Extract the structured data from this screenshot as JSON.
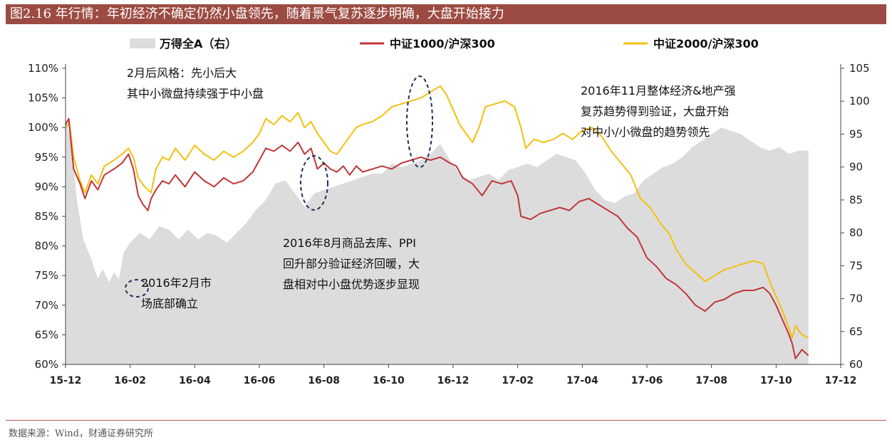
{
  "title": "图2.16 年行情：年初经济不确定仍然小盘领先，随着景气复苏逐步明确，大盘开始接力",
  "source": "数据来源：Wind，财通证券研究所",
  "colors": {
    "title_bg": "#9c4b43",
    "area": "#dcdcdc",
    "csi1000": "#c0353a",
    "csi2000": "#f2c010",
    "circle": "#1f2e5a"
  },
  "chart_data": {
    "type": "line",
    "legend": [
      "万得全A（右）",
      "中证1000/沪深300",
      "中证2000/沪深300"
    ],
    "legend_position": "top",
    "x_ticks": [
      "15-12",
      "16-02",
      "16-04",
      "16-06",
      "16-08",
      "16-10",
      "16-12",
      "17-02",
      "17-04",
      "17-06",
      "17-08",
      "17-10",
      "17-12"
    ],
    "y_left": {
      "ticks": [
        "60%",
        "65%",
        "70%",
        "75%",
        "80%",
        "85%",
        "90%",
        "95%",
        "100%",
        "105%",
        "110%"
      ],
      "ylim": [
        60,
        110
      ],
      "unit": "%"
    },
    "y_right": {
      "ticks": [
        "60",
        "65",
        "70",
        "75",
        "80",
        "85",
        "90",
        "95",
        "100",
        "105"
      ],
      "ylim": [
        60,
        105
      ]
    },
    "grid": false,
    "series": [
      {
        "name": "万得全A（右）",
        "type": "area",
        "axis": "right",
        "points": [
          [
            0,
            97.5
          ],
          [
            0.2,
            93
          ],
          [
            0.35,
            85
          ],
          [
            0.55,
            79
          ],
          [
            0.8,
            76
          ],
          [
            1.0,
            73
          ],
          [
            1.15,
            74.5
          ],
          [
            1.35,
            72.5
          ],
          [
            1.5,
            74
          ],
          [
            1.65,
            73
          ],
          [
            1.8,
            77
          ],
          [
            2.0,
            78.5
          ],
          [
            2.3,
            80
          ],
          [
            2.6,
            79
          ],
          [
            2.9,
            81
          ],
          [
            3.2,
            80.5
          ],
          [
            3.5,
            79
          ],
          [
            3.8,
            80.5
          ],
          [
            4.1,
            79
          ],
          [
            4.4,
            80
          ],
          [
            4.7,
            79.5
          ],
          [
            5.0,
            78.5
          ],
          [
            5.3,
            80
          ],
          [
            5.6,
            81.5
          ],
          [
            5.9,
            83.5
          ],
          [
            6.2,
            85
          ],
          [
            6.5,
            87.5
          ],
          [
            6.8,
            88
          ],
          [
            7.1,
            86
          ],
          [
            7.4,
            84
          ],
          [
            7.7,
            86
          ],
          [
            8.0,
            86.5
          ],
          [
            8.3,
            87
          ],
          [
            8.6,
            87.5
          ],
          [
            8.9,
            88
          ],
          [
            9.2,
            88.5
          ],
          [
            9.5,
            89
          ],
          [
            9.8,
            89
          ],
          [
            10.1,
            90.5
          ],
          [
            10.4,
            90
          ],
          [
            10.7,
            90.5
          ],
          [
            11.0,
            91
          ],
          [
            11.3,
            92
          ],
          [
            11.6,
            93.5
          ],
          [
            11.9,
            91
          ],
          [
            12.2,
            89
          ],
          [
            12.5,
            88
          ],
          [
            12.8,
            88.5
          ],
          [
            13.1,
            89
          ],
          [
            13.4,
            88
          ],
          [
            13.7,
            89.5
          ],
          [
            14.0,
            90
          ],
          [
            14.3,
            90.5
          ],
          [
            14.6,
            90
          ],
          [
            14.9,
            91
          ],
          [
            15.2,
            92
          ],
          [
            15.5,
            91.5
          ],
          [
            15.8,
            91
          ],
          [
            16.1,
            89
          ],
          [
            16.4,
            86.5
          ],
          [
            16.7,
            85
          ],
          [
            17.0,
            84.5
          ],
          [
            17.3,
            85.5
          ],
          [
            17.6,
            86
          ],
          [
            17.9,
            88
          ],
          [
            18.2,
            89
          ],
          [
            18.5,
            90
          ],
          [
            18.8,
            90.5
          ],
          [
            19.1,
            91.5
          ],
          [
            19.4,
            93
          ],
          [
            19.7,
            94
          ],
          [
            20.0,
            95
          ],
          [
            20.3,
            96
          ],
          [
            20.6,
            95.5
          ],
          [
            20.9,
            95
          ],
          [
            21.2,
            94
          ],
          [
            21.5,
            93
          ],
          [
            21.8,
            92.5
          ],
          [
            22.1,
            93
          ],
          [
            22.4,
            92
          ],
          [
            22.7,
            92.5
          ],
          [
            23.0,
            92.5
          ]
        ]
      },
      {
        "name": "中证1000/沪深300",
        "axis": "left",
        "points": [
          [
            0,
            100.5
          ],
          [
            0.1,
            101.5
          ],
          [
            0.25,
            93
          ],
          [
            0.45,
            90.5
          ],
          [
            0.6,
            88
          ],
          [
            0.8,
            91
          ],
          [
            1.0,
            89.5
          ],
          [
            1.2,
            92
          ],
          [
            1.5,
            93
          ],
          [
            1.75,
            94
          ],
          [
            1.95,
            95.5
          ],
          [
            2.1,
            93
          ],
          [
            2.25,
            88.5
          ],
          [
            2.4,
            87
          ],
          [
            2.55,
            86
          ],
          [
            2.65,
            88
          ],
          [
            2.8,
            89.5
          ],
          [
            3.0,
            91
          ],
          [
            3.2,
            90.5
          ],
          [
            3.4,
            92
          ],
          [
            3.7,
            90
          ],
          [
            4.0,
            92.5
          ],
          [
            4.3,
            91
          ],
          [
            4.6,
            90
          ],
          [
            4.9,
            91.5
          ],
          [
            5.2,
            90.5
          ],
          [
            5.5,
            91
          ],
          [
            5.8,
            92.5
          ],
          [
            6.0,
            94.5
          ],
          [
            6.2,
            96.5
          ],
          [
            6.45,
            96
          ],
          [
            6.7,
            97
          ],
          [
            6.95,
            96
          ],
          [
            7.2,
            97.5
          ],
          [
            7.4,
            95.5
          ],
          [
            7.6,
            96.5
          ],
          [
            7.8,
            93
          ],
          [
            8.0,
            94
          ],
          [
            8.2,
            93
          ],
          [
            8.4,
            92.5
          ],
          [
            8.6,
            93.5
          ],
          [
            8.8,
            92
          ],
          [
            9.0,
            93.5
          ],
          [
            9.2,
            92.5
          ],
          [
            9.5,
            93
          ],
          [
            9.8,
            93.5
          ],
          [
            10.1,
            93
          ],
          [
            10.4,
            94
          ],
          [
            10.7,
            94.5
          ],
          [
            11.0,
            95
          ],
          [
            11.3,
            94.5
          ],
          [
            11.6,
            95
          ],
          [
            11.9,
            94
          ],
          [
            12.1,
            93.5
          ],
          [
            12.3,
            91.5
          ],
          [
            12.6,
            90.5
          ],
          [
            12.9,
            88.5
          ],
          [
            13.2,
            91
          ],
          [
            13.5,
            90.5
          ],
          [
            13.8,
            91
          ],
          [
            14.0,
            88.5
          ],
          [
            14.1,
            85
          ],
          [
            14.4,
            84.5
          ],
          [
            14.7,
            85.5
          ],
          [
            15.0,
            86
          ],
          [
            15.3,
            86.5
          ],
          [
            15.6,
            86
          ],
          [
            15.9,
            87.5
          ],
          [
            16.2,
            88
          ],
          [
            16.5,
            87
          ],
          [
            16.8,
            86
          ],
          [
            17.1,
            85
          ],
          [
            17.4,
            83
          ],
          [
            17.7,
            81.5
          ],
          [
            18.0,
            78
          ],
          [
            18.3,
            76.5
          ],
          [
            18.6,
            74.5
          ],
          [
            18.9,
            73.5
          ],
          [
            19.2,
            72
          ],
          [
            19.5,
            70
          ],
          [
            19.8,
            69
          ],
          [
            20.1,
            70.5
          ],
          [
            20.4,
            71
          ],
          [
            20.7,
            72
          ],
          [
            21.0,
            72.5
          ],
          [
            21.3,
            72.5
          ],
          [
            21.6,
            73
          ],
          [
            21.8,
            72
          ],
          [
            22.0,
            70
          ],
          [
            22.2,
            67.5
          ],
          [
            22.4,
            65
          ],
          [
            22.5,
            63.5
          ],
          [
            22.6,
            61
          ],
          [
            22.8,
            62.5
          ],
          [
            23.0,
            61.5
          ]
        ]
      },
      {
        "name": "中证2000/沪深300",
        "axis": "left",
        "points": [
          [
            0,
            100
          ],
          [
            0.12,
            100.8
          ],
          [
            0.25,
            95
          ],
          [
            0.45,
            91
          ],
          [
            0.6,
            89
          ],
          [
            0.8,
            92
          ],
          [
            1.0,
            90.5
          ],
          [
            1.2,
            93.5
          ],
          [
            1.5,
            94.5
          ],
          [
            1.75,
            95.5
          ],
          [
            1.95,
            96.5
          ],
          [
            2.1,
            95
          ],
          [
            2.25,
            91.5
          ],
          [
            2.45,
            90
          ],
          [
            2.65,
            89
          ],
          [
            2.8,
            93
          ],
          [
            3.0,
            95
          ],
          [
            3.2,
            94.5
          ],
          [
            3.4,
            96.5
          ],
          [
            3.7,
            94.5
          ],
          [
            4.0,
            97
          ],
          [
            4.3,
            95.5
          ],
          [
            4.6,
            94.5
          ],
          [
            4.9,
            96
          ],
          [
            5.2,
            95
          ],
          [
            5.5,
            96
          ],
          [
            5.8,
            97.5
          ],
          [
            6.0,
            99
          ],
          [
            6.2,
            101.5
          ],
          [
            6.45,
            100.5
          ],
          [
            6.7,
            102
          ],
          [
            6.95,
            101
          ],
          [
            7.2,
            102.5
          ],
          [
            7.4,
            100
          ],
          [
            7.6,
            101
          ],
          [
            7.8,
            99
          ],
          [
            8.0,
            97.5
          ],
          [
            8.2,
            96
          ],
          [
            8.4,
            95.5
          ],
          [
            8.6,
            97
          ],
          [
            8.8,
            98.5
          ],
          [
            9.0,
            100
          ],
          [
            9.2,
            100.5
          ],
          [
            9.5,
            101
          ],
          [
            9.8,
            102
          ],
          [
            10.1,
            103.5
          ],
          [
            10.4,
            104
          ],
          [
            10.7,
            104.5
          ],
          [
            11.0,
            105
          ],
          [
            11.3,
            106
          ],
          [
            11.6,
            107
          ],
          [
            11.8,
            105.5
          ],
          [
            12.0,
            103
          ],
          [
            12.2,
            100.5
          ],
          [
            12.4,
            99
          ],
          [
            12.6,
            97.5
          ],
          [
            12.8,
            100
          ],
          [
            13.0,
            103.5
          ],
          [
            13.3,
            104
          ],
          [
            13.6,
            104.5
          ],
          [
            13.9,
            103.5
          ],
          [
            14.1,
            100
          ],
          [
            14.25,
            96.5
          ],
          [
            14.5,
            98
          ],
          [
            14.8,
            97.5
          ],
          [
            15.1,
            98
          ],
          [
            15.4,
            99
          ],
          [
            15.7,
            98
          ],
          [
            16.0,
            99.5
          ],
          [
            16.3,
            100
          ],
          [
            16.6,
            98.5
          ],
          [
            16.9,
            96
          ],
          [
            17.2,
            94
          ],
          [
            17.5,
            92
          ],
          [
            17.8,
            88
          ],
          [
            18.1,
            86.5
          ],
          [
            18.4,
            84
          ],
          [
            18.7,
            82
          ],
          [
            18.9,
            79.5
          ],
          [
            19.2,
            77
          ],
          [
            19.5,
            75.5
          ],
          [
            19.8,
            74
          ],
          [
            20.1,
            75
          ],
          [
            20.4,
            76
          ],
          [
            20.7,
            76.5
          ],
          [
            21.0,
            77
          ],
          [
            21.3,
            77.5
          ],
          [
            21.6,
            77
          ],
          [
            21.8,
            74
          ],
          [
            22.0,
            71.5
          ],
          [
            22.2,
            69
          ],
          [
            22.4,
            66
          ],
          [
            22.5,
            64.5
          ],
          [
            22.6,
            66.5
          ],
          [
            22.8,
            65
          ],
          [
            23.0,
            64.5
          ]
        ]
      }
    ],
    "annotations": [
      {
        "lines": [
          "2月后风格：先小后大",
          "其中小微盘持续强于中小盘"
        ]
      },
      {
        "lines": [
          "2016年11月整体经济&地产强",
          "复苏趋势得到验证，大盘开始",
          "对中小/小微盘的趋势领先"
        ]
      },
      {
        "lines": [
          "2016年8月商品去库、PPI",
          "回升部分验证经济回暖，大",
          "盘相对中小盘优势逐步显现"
        ]
      },
      {
        "lines": [
          "2016年2月市",
          "场底部确立"
        ]
      }
    ]
  }
}
